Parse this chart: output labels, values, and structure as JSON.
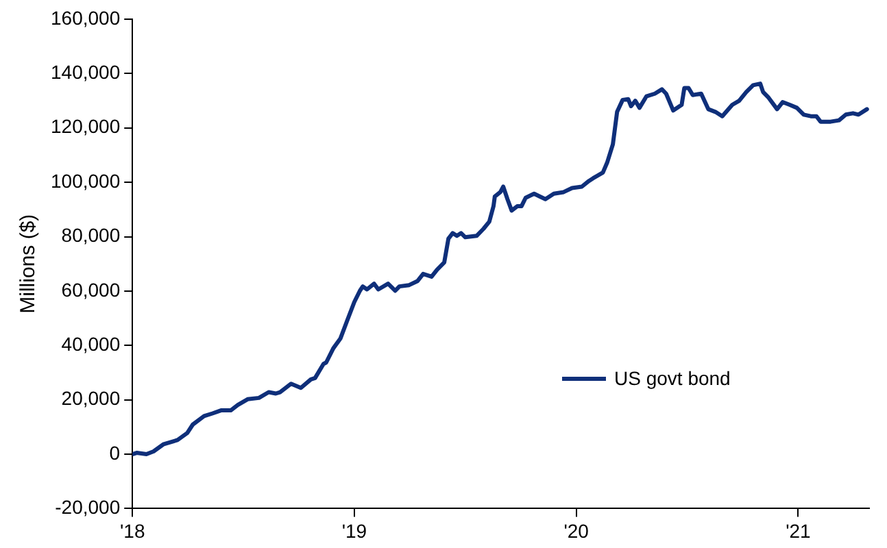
{
  "chart_data": {
    "type": "line",
    "ylabel": "Millions ($)",
    "legend": "bottom right",
    "marker": "none",
    "line_style": "solid",
    "grid": false,
    "xlim": [
      2018,
      2021.32
    ],
    "xticks": [
      {
        "value": 2018,
        "label": "'18"
      },
      {
        "value": 2019,
        "label": "'19"
      },
      {
        "value": 2020,
        "label": "'20"
      },
      {
        "value": 2021,
        "label": "'21"
      }
    ],
    "ylim": [
      -20000,
      160000
    ],
    "yticks": [
      {
        "value": -20000,
        "label": "-20,000"
      },
      {
        "value": 0,
        "label": "0"
      },
      {
        "value": 20000,
        "label": "20,000"
      },
      {
        "value": 40000,
        "label": "40,000"
      },
      {
        "value": 60000,
        "label": "60,000"
      },
      {
        "value": 80000,
        "label": "80,000"
      },
      {
        "value": 100000,
        "label": "100,000"
      },
      {
        "value": 120000,
        "label": "120,000"
      },
      {
        "value": 140000,
        "label": "140,000"
      },
      {
        "value": 160000,
        "label": "160,000"
      }
    ],
    "x": [
      2018.0,
      2018.019,
      2018.063,
      2018.095,
      2018.139,
      2018.203,
      2018.247,
      2018.272,
      2018.323,
      2018.361,
      2018.399,
      2018.443,
      2018.475,
      2018.519,
      2018.57,
      2018.614,
      2018.646,
      2018.665,
      2018.715,
      2018.759,
      2018.804,
      2018.823,
      2018.861,
      2018.873,
      2018.905,
      2018.937,
      2018.968,
      2019.0,
      2019.025,
      2019.038,
      2019.057,
      2019.089,
      2019.108,
      2019.152,
      2019.184,
      2019.203,
      2019.247,
      2019.285,
      2019.31,
      2019.348,
      2019.373,
      2019.405,
      2019.424,
      2019.443,
      2019.462,
      2019.481,
      2019.5,
      2019.551,
      2019.582,
      2019.608,
      2019.627,
      2019.633,
      2019.658,
      2019.671,
      2019.69,
      2019.709,
      2019.734,
      2019.753,
      2019.772,
      2019.81,
      2019.835,
      2019.861,
      2019.899,
      2019.943,
      2019.981,
      2020.025,
      2020.057,
      2020.076,
      2020.12,
      2020.139,
      2020.165,
      2020.184,
      2020.209,
      2020.234,
      2020.247,
      2020.266,
      2020.285,
      2020.316,
      2020.354,
      2020.386,
      2020.405,
      2020.437,
      2020.475,
      2020.487,
      2020.506,
      2020.525,
      2020.563,
      2020.595,
      2020.627,
      2020.658,
      2020.703,
      2020.734,
      2020.766,
      2020.797,
      2020.829,
      2020.842,
      2020.867,
      2020.905,
      2020.93,
      2020.962,
      2020.994,
      2021.025,
      2021.057,
      2021.082,
      2021.101,
      2021.146,
      2021.184,
      2021.215,
      2021.247,
      2021.272,
      2021.31
    ],
    "series": [
      {
        "name": "US govt bond",
        "color": "#0f2f7a",
        "values": [
          0,
          500,
          0,
          1000,
          3600,
          5200,
          7800,
          10900,
          14000,
          15000,
          16100,
          16100,
          18100,
          20200,
          20700,
          22800,
          22300,
          22800,
          25900,
          24400,
          27500,
          28000,
          33200,
          33700,
          38900,
          42500,
          49200,
          56000,
          60100,
          61700,
          60600,
          62700,
          60600,
          62700,
          60100,
          61700,
          62200,
          63700,
          66300,
          65300,
          67900,
          70500,
          79300,
          81300,
          80300,
          81300,
          79800,
          80300,
          82900,
          85500,
          91200,
          94800,
          96400,
          98400,
          93800,
          89600,
          91200,
          91200,
          94300,
          95800,
          94800,
          93800,
          95800,
          96400,
          97900,
          98400,
          100500,
          101500,
          103600,
          107200,
          114000,
          125900,
          130300,
          130600,
          128000,
          130000,
          127400,
          131600,
          132600,
          134200,
          132600,
          126400,
          128500,
          134700,
          134700,
          132100,
          132600,
          126900,
          125900,
          124300,
          128500,
          130000,
          133200,
          135700,
          136300,
          133200,
          131100,
          126900,
          129500,
          128500,
          127400,
          124900,
          124300,
          124300,
          122300,
          122300,
          122800,
          124900,
          125400,
          124900,
          126900
        ]
      }
    ]
  }
}
